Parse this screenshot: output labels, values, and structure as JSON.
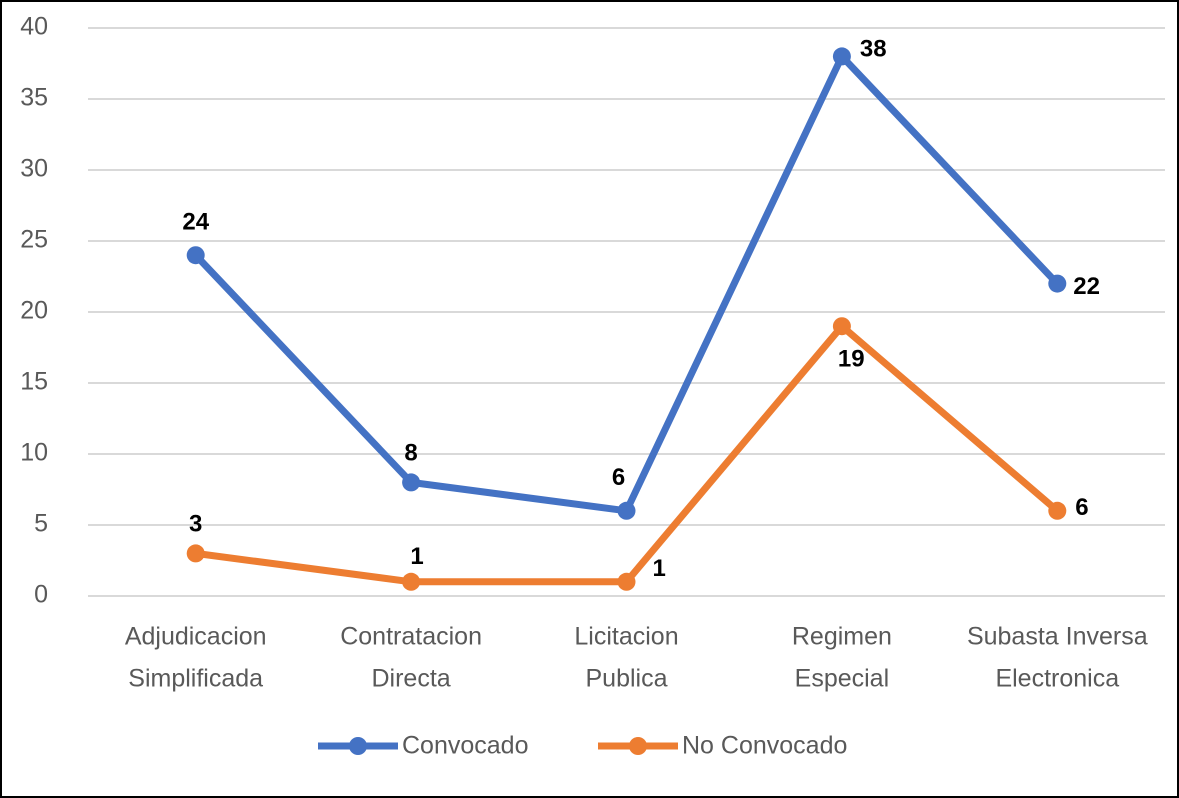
{
  "chart_data": {
    "type": "line",
    "categories": [
      [
        "Adjudicacion",
        "Simplificada"
      ],
      [
        "Contratacion",
        "Directa"
      ],
      [
        "Licitacion",
        "Publica"
      ],
      [
        "Regimen",
        "Especial"
      ],
      [
        "Subasta Inversa",
        "Electronica"
      ]
    ],
    "series": [
      {
        "name": "Convocado",
        "color": "#4472c4",
        "values": [
          24,
          8,
          6,
          38,
          22
        ]
      },
      {
        "name": "No Convocado",
        "color": "#ed7d31",
        "values": [
          3,
          1,
          1,
          19,
          6
        ]
      }
    ],
    "ylim": [
      0,
      40
    ],
    "yticks": [
      0,
      5,
      10,
      15,
      20,
      25,
      30,
      35,
      40
    ],
    "grid": true,
    "legend": "bottom"
  }
}
